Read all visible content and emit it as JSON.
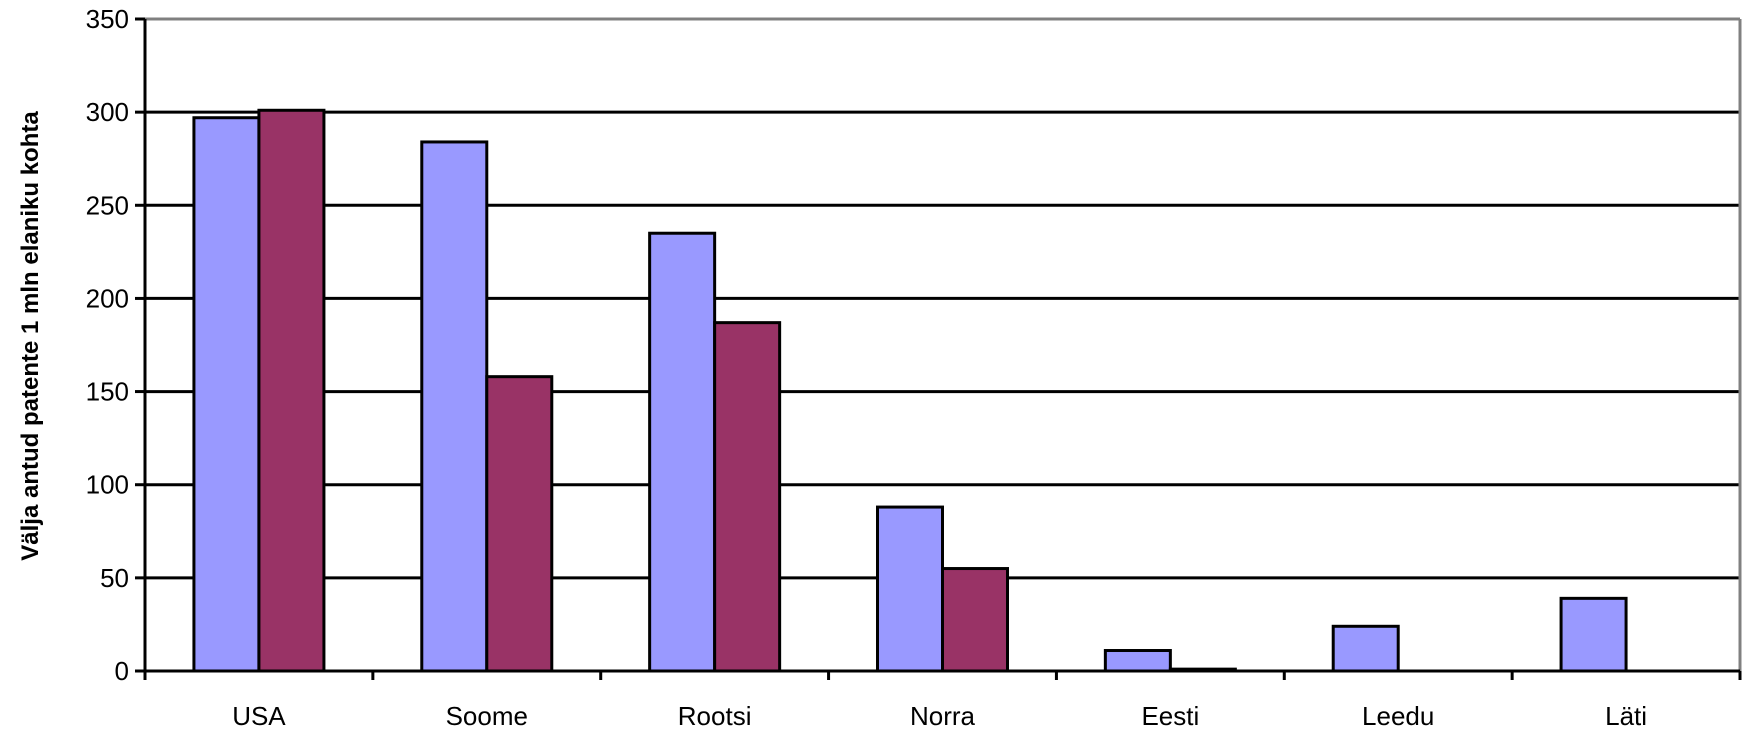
{
  "chart_data": {
    "type": "bar",
    "title": "",
    "xlabel": "",
    "ylabel": "Välja antud patente 1 mln elaniku kohta",
    "categories": [
      "USA",
      "Soome",
      "Rootsi",
      "Norra",
      "Eesti",
      "Leedu",
      "Läti"
    ],
    "series": [
      {
        "values": [
          297,
          284,
          235,
          88,
          11,
          24,
          39
        ],
        "color": "#9999ff"
      },
      {
        "values": [
          301,
          158,
          187,
          55,
          1,
          0,
          0
        ],
        "color": "#993366"
      }
    ],
    "ylim": [
      0,
      350
    ],
    "yticks": [
      0,
      50,
      100,
      150,
      200,
      250,
      300,
      350
    ],
    "grid": true,
    "legend": "none"
  }
}
